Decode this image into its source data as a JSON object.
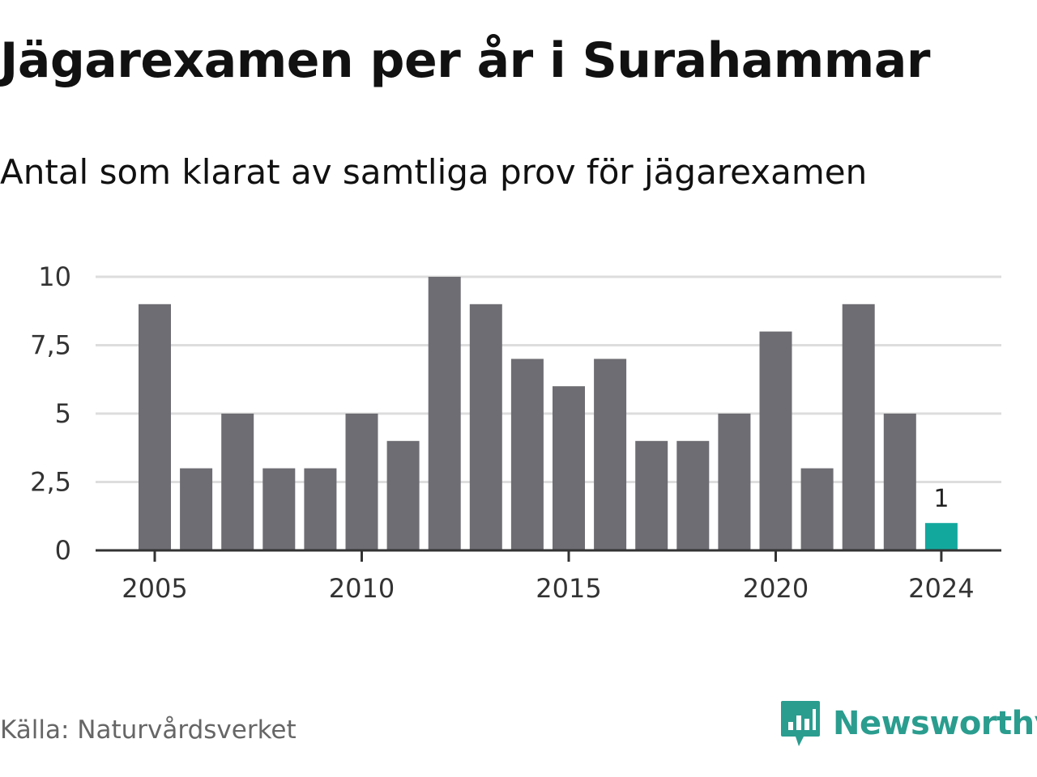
{
  "header": {
    "title": "Jägarexamen per år i Surahammar",
    "subtitle": "Antal som klarat av samtliga prov för jägarexamen"
  },
  "footer": {
    "source": "Källa: Naturvårdsverket",
    "brand": "Newsworthy"
  },
  "colors": {
    "bar": "#6e6d73",
    "highlight": "#13a89e",
    "grid": "#dddddd",
    "axis": "#333333",
    "brand": "#2a9d8f"
  },
  "icons": {
    "brand_logo": "bar-chart-speech-bubble-icon"
  },
  "chart_data": {
    "type": "bar",
    "title": "Jägarexamen per år i Surahammar",
    "subtitle": "Antal som klarat av samtliga prov för jägarexamen",
    "xlabel": "",
    "ylabel": "",
    "categories": [
      2005,
      2006,
      2007,
      2008,
      2009,
      2010,
      2011,
      2012,
      2013,
      2014,
      2015,
      2016,
      2017,
      2018,
      2019,
      2020,
      2021,
      2022,
      2023,
      2024
    ],
    "values": [
      9,
      3,
      5,
      3,
      3,
      5,
      4,
      10,
      9,
      7,
      6,
      7,
      4,
      4,
      5,
      8,
      3,
      9,
      5,
      1
    ],
    "ylim": [
      0,
      10
    ],
    "y_ticks": [
      0,
      2.5,
      5,
      7.5,
      10
    ],
    "y_tick_labels": [
      "0",
      "2,5",
      "5",
      "7,5",
      "10"
    ],
    "x_ticks": [
      2005,
      2010,
      2015,
      2020,
      2024
    ],
    "x_tick_labels": [
      "2005",
      "2010",
      "2015",
      "2020",
      "2024"
    ],
    "highlight_category": 2024,
    "data_labels": [
      {
        "category": 2024,
        "text": "1"
      }
    ],
    "grid": true,
    "legend": "none"
  }
}
